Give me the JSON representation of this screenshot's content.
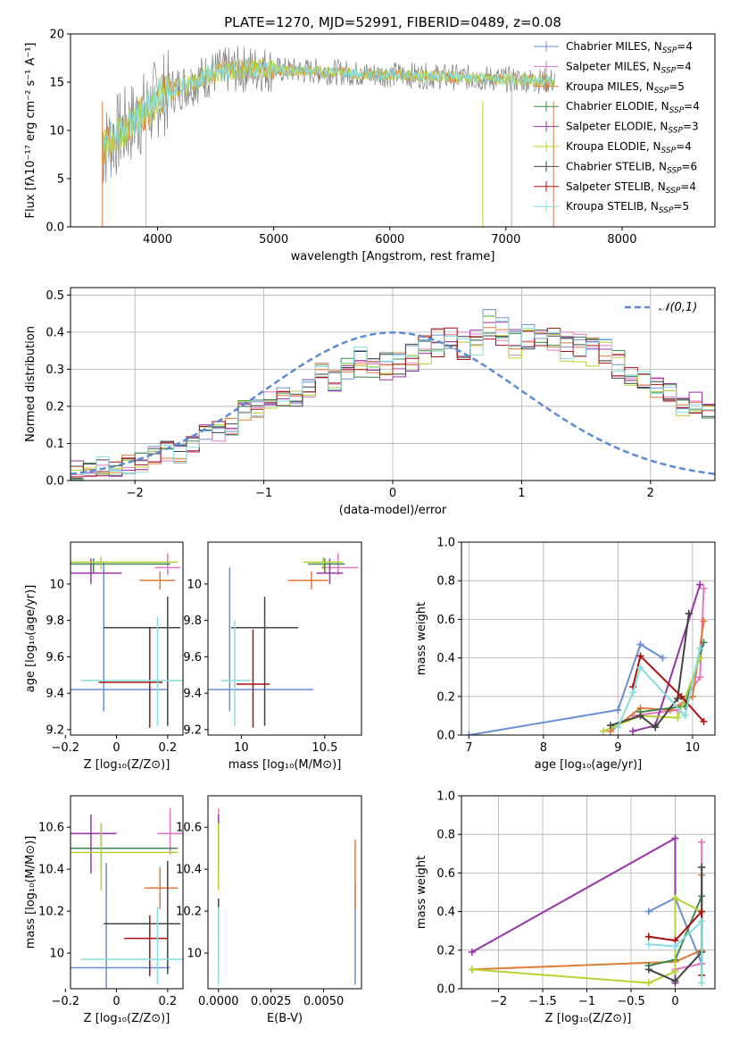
{
  "colors": {
    "Chabrier MILES": "#6b8fd6",
    "Salpeter MILES": "#e377c2",
    "Kroupa MILES": "#e07b39",
    "Chabrier ELODIE": "#3f8a4f",
    "Salpeter ELODIE": "#9933aa",
    "Kroupa ELODIE": "#b5d432",
    "Chabrier STELIB": "#444444",
    "Salpeter STELIB": "#aa1111",
    "Kroupa STELIB": "#88dde0",
    "data": "#808080"
  },
  "chart_data": [
    {
      "id": "spectrum",
      "type": "line",
      "title": "PLATE=1270, MJD=52991, FIBERID=0489, z=0.08",
      "xlabel": "wavelength [Angstrom, rest frame]",
      "ylabel": "Flux [fλ10⁻¹⁷ erg cm⁻² s⁻¹ A⁻¹]",
      "xlim": [
        3250,
        8800
      ],
      "ylim": [
        0,
        20
      ],
      "xticks": [
        4000,
        5000,
        6000,
        7000,
        8000
      ],
      "yticks": [
        0,
        5,
        10,
        15,
        20
      ],
      "legend": "top-right",
      "legend_entries": [
        "Chabrier MILES, N_SSP=4",
        "Salpeter MILES, N_SSP=4",
        "Kroupa MILES, N_SSP=5",
        "Chabrier ELODIE, N_SSP=4",
        "Salpeter ELODIE, N_SSP=3",
        "Kroupa ELODIE, N_SSP=4",
        "Chabrier STELIB, N_SSP=6",
        "Salpeter STELIB, N_SSP=4",
        "Kroupa STELIB, N_SSP=5"
      ],
      "continuum": {
        "x": [
          3530,
          3600,
          3700,
          3800,
          3900,
          3950,
          4000,
          4100,
          4200,
          4300,
          4400,
          4500,
          4600,
          4700,
          4800,
          4900,
          5000,
          5200,
          5400,
          5600,
          5800,
          6000,
          6200,
          6400,
          6600,
          6800,
          7000,
          7200,
          7400,
          7600,
          7800,
          8000,
          8200,
          8400,
          8600,
          8800
        ],
        "y": [
          8.0,
          9.0,
          10.0,
          11.0,
          12.0,
          12.5,
          13.5,
          14.0,
          14.5,
          15.0,
          15.5,
          16.0,
          16.2,
          16.3,
          16.4,
          16.4,
          16.3,
          16.2,
          16.1,
          16.0,
          15.8,
          15.8,
          15.7,
          15.6,
          15.5,
          15.4,
          15.3,
          15.2,
          15.1,
          14.9,
          14.8,
          14.7,
          14.6,
          14.5,
          14.4,
          14.3
        ]
      },
      "data_xrange": [
        3520,
        7420
      ]
    },
    {
      "id": "residuals",
      "type": "histogram",
      "xlabel": "(data-model)/error",
      "ylabel": "Normed distribution",
      "xlim": [
        -2.5,
        2.5
      ],
      "ylim": [
        0,
        0.52
      ],
      "xticks": [
        -2,
        -1,
        0,
        1,
        2
      ],
      "yticks": [
        0.0,
        0.1,
        0.2,
        0.3,
        0.4,
        0.5
      ],
      "grid": true,
      "legend": "top-right",
      "reference_label": "𝒩(0,1)",
      "bins": {
        "start": -2.5,
        "width": 0.1,
        "values": [
          0.025,
          0.03,
          0.035,
          0.04,
          0.045,
          0.05,
          0.07,
          0.08,
          0.07,
          0.1,
          0.12,
          0.13,
          0.15,
          0.19,
          0.2,
          0.22,
          0.23,
          0.22,
          0.25,
          0.3,
          0.27,
          0.3,
          0.32,
          0.3,
          0.31,
          0.32,
          0.33,
          0.35,
          0.37,
          0.39,
          0.36,
          0.38,
          0.42,
          0.4,
          0.37,
          0.38,
          0.38,
          0.37,
          0.36,
          0.36,
          0.35,
          0.34,
          0.31,
          0.28,
          0.27,
          0.25,
          0.24,
          0.2,
          0.21,
          0.19,
          0.17,
          0.14,
          0.13,
          0.12,
          0.1,
          0.09,
          0.08,
          0.07,
          0.06,
          0.05
        ]
      }
    },
    {
      "id": "age-vs-Z",
      "type": "scatter",
      "xlabel": "Z [log₁₀(Z/Z⊙)]",
      "ylabel": "age  [log₁₀(age/yr)]",
      "xlim": [
        -0.18,
        0.26
      ],
      "ylim": [
        9.17,
        10.23
      ],
      "xticks": [
        -0.2,
        0.0,
        0.2
      ],
      "yticks": [
        9.2,
        9.4,
        9.6,
        9.8,
        10.0
      ],
      "points": [
        {
          "name": "Chabrier MILES",
          "x": -0.05,
          "y": 9.42,
          "xerr": [
            0.2,
            0.25
          ],
          "yerr": [
            0.12,
            0.7
          ]
        },
        {
          "name": "Salpeter MILES",
          "x": 0.2,
          "y": 10.09,
          "xerr": [
            0.05,
            0.05
          ],
          "yerr": [
            0.04,
            0.08
          ]
        },
        {
          "name": "Kroupa MILES",
          "x": 0.17,
          "y": 10.02,
          "xerr": [
            0.08,
            0.06
          ],
          "yerr": [
            0.05,
            0.05
          ]
        },
        {
          "name": "Chabrier ELODIE",
          "x": -0.09,
          "y": 10.11,
          "xerr": [
            0.2,
            0.3
          ],
          "yerr": [
            0.05,
            0.03
          ]
        },
        {
          "name": "Salpeter ELODIE",
          "x": -0.1,
          "y": 10.06,
          "xerr": [
            0.12,
            0.12
          ],
          "yerr": [
            0.06,
            0.08
          ]
        },
        {
          "name": "Kroupa ELODIE",
          "x": -0.06,
          "y": 10.12,
          "xerr": [
            0.2,
            0.3
          ],
          "yerr": [
            0.04,
            0.03
          ]
        },
        {
          "name": "Chabrier STELIB",
          "x": 0.2,
          "y": 9.76,
          "xerr": [
            0.25,
            0.05
          ],
          "yerr": [
            0.54,
            0.17
          ]
        },
        {
          "name": "Salpeter STELIB",
          "x": 0.13,
          "y": 9.46,
          "xerr": [
            0.2,
            0.05
          ],
          "yerr": [
            0.25,
            0.3
          ]
        },
        {
          "name": "Kroupa STELIB",
          "x": 0.16,
          "y": 9.47,
          "xerr": [
            0.3,
            0.1
          ],
          "yerr": [
            0.25,
            0.35
          ]
        }
      ]
    },
    {
      "id": "age-vs-mass",
      "type": "scatter",
      "xlabel": "mass [log₁₀(M/M⊙)]",
      "ylabel": "",
      "xlim": [
        9.8,
        10.72
      ],
      "ylim": [
        9.17,
        10.23
      ],
      "xticks": [
        10.0,
        10.5
      ],
      "yticks": [
        9.2,
        9.4,
        9.6,
        9.8,
        10.0
      ],
      "points": [
        {
          "name": "Chabrier MILES",
          "x": 9.93,
          "y": 9.42,
          "xerr": [
            0.15,
            0.5
          ],
          "yerr": [
            0.12,
            0.67
          ]
        },
        {
          "name": "Salpeter MILES",
          "x": 10.58,
          "y": 10.09,
          "xerr": [
            0.1,
            0.12
          ],
          "yerr": [
            0.04,
            0.08
          ]
        },
        {
          "name": "Kroupa MILES",
          "x": 10.42,
          "y": 10.02,
          "xerr": [
            0.14,
            0.1
          ],
          "yerr": [
            0.05,
            0.05
          ]
        },
        {
          "name": "Chabrier ELODIE",
          "x": 10.5,
          "y": 10.11,
          "xerr": [
            0.1,
            0.12
          ],
          "yerr": [
            0.05,
            0.03
          ]
        },
        {
          "name": "Salpeter ELODIE",
          "x": 10.53,
          "y": 10.06,
          "xerr": [
            0.08,
            0.08
          ],
          "yerr": [
            0.06,
            0.08
          ]
        },
        {
          "name": "Kroupa ELODIE",
          "x": 10.49,
          "y": 10.12,
          "xerr": [
            0.12,
            0.12
          ],
          "yerr": [
            0.04,
            0.03
          ]
        },
        {
          "name": "Chabrier STELIB",
          "x": 10.14,
          "y": 9.76,
          "xerr": [
            0.2,
            0.2
          ],
          "yerr": [
            0.54,
            0.17
          ]
        },
        {
          "name": "Salpeter STELIB",
          "x": 10.07,
          "y": 9.45,
          "xerr": [
            0.1,
            0.1
          ],
          "yerr": [
            0.24,
            0.3
          ]
        },
        {
          "name": "Kroupa STELIB",
          "x": 9.96,
          "y": 9.47,
          "xerr": [
            0.08,
            0.1
          ],
          "yerr": [
            0.25,
            0.33
          ]
        }
      ]
    },
    {
      "id": "weight-vs-age",
      "type": "line",
      "xlabel": "age  [log₁₀(age/yr)]",
      "ylabel": "mass weight",
      "xlim": [
        6.9,
        10.3
      ],
      "ylim": [
        0,
        1.0
      ],
      "xticks": [
        7,
        8,
        9,
        10
      ],
      "yticks": [
        0.0,
        0.2,
        0.4,
        0.6,
        0.8,
        1.0
      ],
      "grid": true,
      "series": [
        {
          "name": "Chabrier MILES",
          "x": [
            7.0,
            9.0,
            9.3,
            9.6
          ],
          "y": [
            0.0,
            0.13,
            0.47,
            0.4
          ]
        },
        {
          "name": "Salpeter MILES",
          "x": [
            9.2,
            9.8,
            10.1,
            10.15
          ],
          "y": [
            0.1,
            0.13,
            0.3,
            0.76
          ]
        },
        {
          "name": "Kroupa MILES",
          "x": [
            8.9,
            9.3,
            9.7,
            10.0,
            10.15
          ],
          "y": [
            0.02,
            0.14,
            0.13,
            0.2,
            0.59
          ]
        },
        {
          "name": "Chabrier ELODIE",
          "x": [
            9.3,
            9.9,
            10.15
          ],
          "y": [
            0.12,
            0.15,
            0.48
          ]
        },
        {
          "name": "Salpeter ELODIE",
          "x": [
            9.2,
            9.5,
            10.1
          ],
          "y": [
            0.02,
            0.05,
            0.78
          ]
        },
        {
          "name": "Kroupa ELODIE",
          "x": [
            8.8,
            9.3,
            9.8,
            10.1
          ],
          "y": [
            0.02,
            0.1,
            0.09,
            0.4
          ]
        },
        {
          "name": "Chabrier STELIB",
          "x": [
            8.9,
            9.3,
            9.5,
            9.8,
            9.95
          ],
          "y": [
            0.05,
            0.1,
            0.04,
            0.19,
            0.63
          ]
        },
        {
          "name": "Salpeter STELIB",
          "x": [
            9.2,
            9.3,
            9.85,
            10.15
          ],
          "y": [
            0.25,
            0.41,
            0.2,
            0.07
          ]
        },
        {
          "name": "Kroupa STELIB",
          "x": [
            9.0,
            9.2,
            9.3,
            9.9,
            10.1
          ],
          "y": [
            0.04,
            0.22,
            0.35,
            0.1,
            0.45
          ]
        }
      ]
    },
    {
      "id": "mass-vs-Z",
      "type": "scatter",
      "xlabel": "Z [log₁₀(Z/Z⊙)]",
      "ylabel": "mass [log₁₀(M/M⊙)]",
      "xlim": [
        -0.18,
        0.26
      ],
      "ylim": [
        9.83,
        10.75
      ],
      "xticks": [
        -0.2,
        0.0,
        0.2
      ],
      "yticks": [
        10.0,
        10.2,
        10.4,
        10.6
      ],
      "points": [
        {
          "name": "Chabrier MILES",
          "x": -0.04,
          "y": 9.93,
          "xerr": [
            0.15,
            0.25
          ],
          "yerr": [
            0.1,
            0.5
          ]
        },
        {
          "name": "Salpeter MILES",
          "x": 0.21,
          "y": 10.57,
          "xerr": [
            0.05,
            0.05
          ],
          "yerr": [
            0.1,
            0.12
          ]
        },
        {
          "name": "Kroupa MILES",
          "x": 0.17,
          "y": 10.31,
          "xerr": [
            0.06,
            0.07
          ],
          "yerr": [
            0.1,
            0.1
          ]
        },
        {
          "name": "Chabrier ELODIE",
          "x": -0.06,
          "y": 10.5,
          "xerr": [
            0.2,
            0.3
          ],
          "yerr": [
            0.1,
            0.12
          ]
        },
        {
          "name": "Salpeter ELODIE",
          "x": -0.1,
          "y": 10.57,
          "xerr": [
            0.1,
            0.1
          ],
          "yerr": [
            0.19,
            0.09
          ]
        },
        {
          "name": "Kroupa ELODIE",
          "x": -0.06,
          "y": 10.48,
          "xerr": [
            0.2,
            0.3
          ],
          "yerr": [
            0.18,
            0.14
          ]
        },
        {
          "name": "Chabrier STELIB",
          "x": 0.2,
          "y": 10.14,
          "xerr": [
            0.25,
            0.05
          ],
          "yerr": [
            0.24,
            0.3
          ]
        },
        {
          "name": "Salpeter STELIB",
          "x": 0.13,
          "y": 10.07,
          "xerr": [
            0.1,
            0.07
          ],
          "yerr": [
            0.18,
            0.11
          ]
        },
        {
          "name": "Kroupa STELIB",
          "x": 0.16,
          "y": 9.97,
          "xerr": [
            0.3,
            0.1
          ],
          "yerr": [
            0.12,
            0.25
          ]
        }
      ]
    },
    {
      "id": "mass-vs-ebv",
      "type": "scatter",
      "xlabel": "E(B-V)",
      "ylabel": "",
      "xlim": [
        -0.0005,
        0.0068
      ],
      "ylim": [
        9.83,
        10.75
      ],
      "xticks": [
        0.0,
        0.0025,
        0.005
      ],
      "xticklabels": [
        "0.0000",
        "0.0025",
        "0.0050"
      ],
      "yticks": [
        10.0,
        10.2,
        10.4,
        10.6
      ],
      "points": [
        {
          "name": "Chabrier MILES",
          "x": 0.0065,
          "y": 9.93,
          "yerr": [
            0.08,
            0.4
          ]
        },
        {
          "name": "Salpeter MILES",
          "x": 0.0,
          "y": 10.57,
          "yerr": [
            0.1,
            0.12
          ]
        },
        {
          "name": "Kroupa MILES",
          "x": 0.0065,
          "y": 10.31,
          "yerr": [
            0.1,
            0.23
          ]
        },
        {
          "name": "Chabrier ELODIE",
          "x": 0.0,
          "y": 10.5,
          "yerr": [
            0.1,
            0.12
          ]
        },
        {
          "name": "Salpeter ELODIE",
          "x": 0.0,
          "y": 10.57,
          "yerr": [
            0.19,
            0.09
          ]
        },
        {
          "name": "Kroupa ELODIE",
          "x": 0.0,
          "y": 10.48,
          "yerr": [
            0.18,
            0.14
          ]
        },
        {
          "name": "Chabrier STELIB",
          "x": 0.0,
          "y": 10.14,
          "yerr": [
            0.2,
            0.12
          ]
        },
        {
          "name": "Salpeter STELIB",
          "x": 0.0,
          "y": 10.17,
          "yerr": [
            0.1,
            0.05
          ]
        },
        {
          "name": "Kroupa STELIB",
          "x": 0.0,
          "y": 9.97,
          "yerr": [
            0.12,
            0.25
          ]
        }
      ]
    },
    {
      "id": "weight-vs-Z",
      "type": "line",
      "xlabel": "Z [log₁₀(Z/Z⊙)]",
      "ylabel": "mass weight",
      "xlim": [
        -2.42,
        0.45
      ],
      "ylim": [
        0,
        1.0
      ],
      "xticks": [
        -2.0,
        -1.5,
        -1.0,
        -0.5,
        0.0
      ],
      "yticks": [
        0.0,
        0.2,
        0.4,
        0.6,
        0.8,
        1.0
      ],
      "grid": true,
      "series": [
        {
          "name": "Chabrier MILES",
          "x": [
            -0.3,
            0.0,
            0.3
          ],
          "y": [
            0.4,
            0.47,
            0.13
          ]
        },
        {
          "name": "Salpeter MILES",
          "x": [
            0.0,
            0.3,
            0.3
          ],
          "y": [
            0.1,
            0.13,
            0.76
          ]
        },
        {
          "name": "Kroupa MILES",
          "x": [
            -2.3,
            0.0,
            0.3,
            0.3
          ],
          "y": [
            0.1,
            0.14,
            0.2,
            0.59
          ]
        },
        {
          "name": "Chabrier ELODIE",
          "x": [
            -0.3,
            0.0,
            0.3
          ],
          "y": [
            0.12,
            0.15,
            0.48
          ]
        },
        {
          "name": "Salpeter ELODIE",
          "x": [
            -2.3,
            0.0,
            0.0
          ],
          "y": [
            0.19,
            0.78,
            0.03
          ]
        },
        {
          "name": "Kroupa ELODIE",
          "x": [
            -2.3,
            -0.3,
            0.0,
            0.0,
            0.3
          ],
          "y": [
            0.1,
            0.03,
            0.09,
            0.47,
            0.4
          ]
        },
        {
          "name": "Chabrier STELIB",
          "x": [
            -0.3,
            0.0,
            0.3,
            0.3
          ],
          "y": [
            0.1,
            0.04,
            0.19,
            0.63
          ]
        },
        {
          "name": "Salpeter STELIB",
          "x": [
            -0.3,
            0.0,
            0.3,
            0.3
          ],
          "y": [
            0.27,
            0.25,
            0.4,
            0.07
          ]
        },
        {
          "name": "Kroupa STELIB",
          "x": [
            -0.3,
            0.0,
            0.3,
            0.3
          ],
          "y": [
            0.23,
            0.22,
            0.35,
            0.03
          ]
        }
      ]
    }
  ]
}
